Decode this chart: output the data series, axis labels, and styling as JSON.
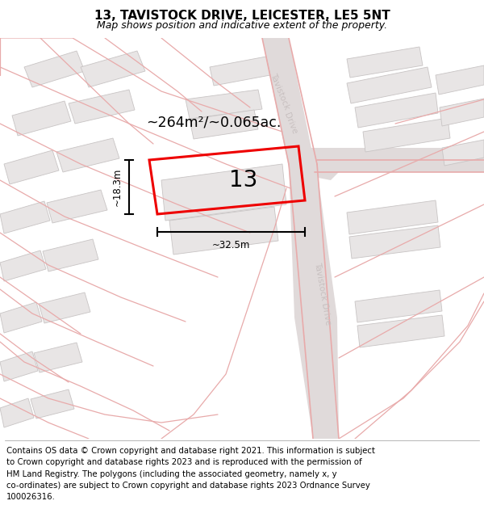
{
  "title": "13, TAVISTOCK DRIVE, LEICESTER, LE5 5NT",
  "subtitle": "Map shows position and indicative extent of the property.",
  "area_label": "~264m²/~0.065ac.",
  "property_number": "13",
  "width_label": "~32.5m",
  "height_label": "~18.3m",
  "map_bg": "#f7f5f5",
  "building_color": "#e8e5e5",
  "building_edge": "#c8c4c4",
  "road_line_color": "#e8aaaa",
  "road_fill": "#e0dada",
  "property_color": "#ee0000",
  "label_color": "#c8c0c0",
  "title_fontsize": 11,
  "subtitle_fontsize": 9,
  "footer_fontsize": 7.3,
  "footer_lines": [
    "Contains OS data © Crown copyright and database right 2021. This information is subject",
    "to Crown copyright and database rights 2023 and is reproduced with the permission of",
    "HM Land Registry. The polygons (including the associated geometry, namely x, y",
    "co-ordinates) are subject to Crown copyright and database rights 2023 Ordnance Survey",
    "100026316."
  ]
}
